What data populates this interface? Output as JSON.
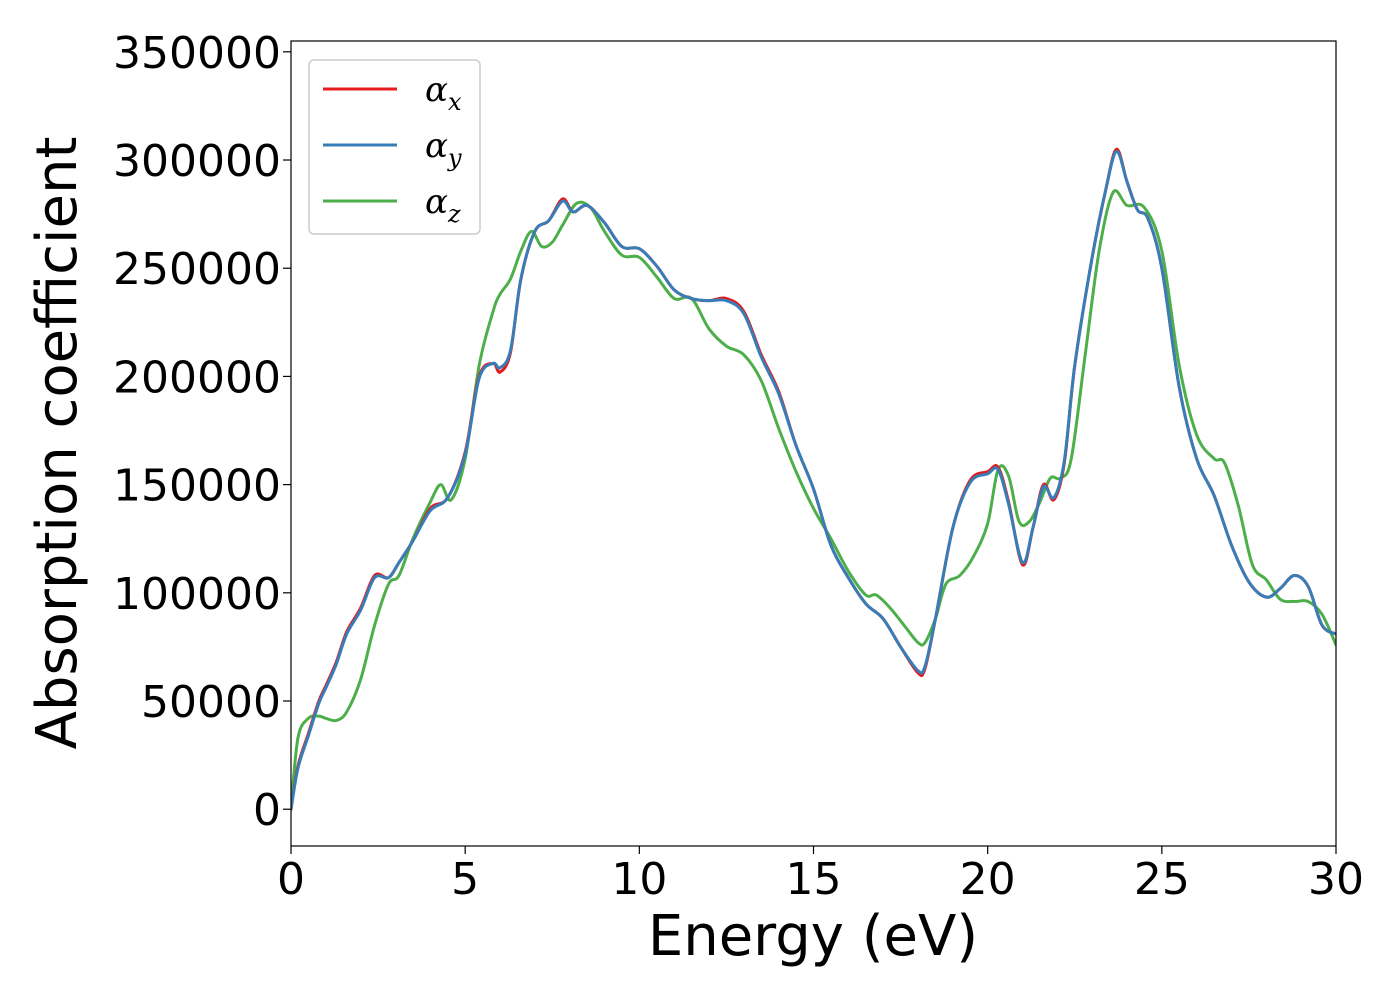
{
  "chart_data": {
    "type": "line",
    "xlabel": "Energy (eV)",
    "ylabel": "Absorption coefficient",
    "xlim": [
      0,
      30
    ],
    "ylim": [
      -17000,
      355000
    ],
    "xticks": [
      0,
      5,
      10,
      15,
      20,
      25,
      30
    ],
    "yticks": [
      0,
      50000,
      100000,
      150000,
      200000,
      250000,
      300000,
      350000
    ],
    "xtick_labels": [
      "0",
      "5",
      "10",
      "15",
      "20",
      "25",
      "30"
    ],
    "ytick_labels": [
      "0",
      "50000",
      "100000",
      "150000",
      "200000",
      "250000",
      "300000",
      "350000"
    ],
    "grid": false,
    "legend_position": "top-left",
    "series": [
      {
        "name": "α_x",
        "label_main": "α",
        "label_sub": "x",
        "color": "#e41a1c",
        "x": [
          0,
          0.2,
          0.5,
          0.8,
          1.0,
          1.3,
          1.6,
          2.0,
          2.4,
          2.8,
          3.1,
          3.5,
          4.0,
          4.5,
          5.0,
          5.4,
          5.8,
          6.0,
          6.3,
          6.6,
          7.0,
          7.4,
          7.8,
          8.1,
          8.5,
          9.0,
          9.5,
          10.0,
          10.5,
          11.0,
          11.5,
          12.0,
          12.5,
          13.0,
          13.5,
          14.0,
          14.5,
          15.0,
          15.5,
          16.0,
          16.5,
          17.0,
          17.5,
          18.0,
          18.2,
          18.5,
          19.0,
          19.5,
          20.0,
          20.3,
          20.6,
          21.0,
          21.3,
          21.6,
          21.9,
          22.2,
          22.5,
          23.0,
          23.4,
          23.7,
          24.0,
          24.3,
          24.6,
          25.0,
          25.5,
          26.0,
          26.5,
          27.0,
          27.5,
          28.0,
          28.4,
          28.8,
          29.2,
          29.6,
          30.0
        ],
        "y": [
          0,
          20000,
          35000,
          50000,
          57000,
          68000,
          82000,
          93000,
          108000,
          107000,
          114000,
          124000,
          139000,
          144000,
          165000,
          200000,
          206000,
          202000,
          211000,
          245000,
          267000,
          272000,
          282000,
          276000,
          279000,
          271000,
          260000,
          259000,
          251000,
          240000,
          236000,
          235000,
          236000,
          230000,
          210000,
          193000,
          168000,
          148000,
          122000,
          107000,
          95000,
          88000,
          75000,
          63000,
          65000,
          88000,
          130000,
          152000,
          156000,
          158000,
          142000,
          113000,
          130000,
          150000,
          143000,
          160000,
          205000,
          255000,
          287000,
          305000,
          290000,
          277000,
          273000,
          250000,
          195000,
          162000,
          145000,
          122000,
          105000,
          98000,
          102000,
          108000,
          103000,
          85000,
          81000
        ]
      },
      {
        "name": "α_y",
        "label_main": "α",
        "label_sub": "y",
        "color": "#377eb8",
        "x": [
          0,
          0.2,
          0.5,
          0.8,
          1.0,
          1.3,
          1.6,
          2.0,
          2.4,
          2.8,
          3.1,
          3.5,
          4.0,
          4.5,
          5.0,
          5.4,
          5.8,
          6.0,
          6.3,
          6.6,
          7.0,
          7.4,
          7.8,
          8.1,
          8.5,
          9.0,
          9.5,
          10.0,
          10.5,
          11.0,
          11.5,
          12.0,
          12.5,
          13.0,
          13.5,
          14.0,
          14.5,
          15.0,
          15.5,
          16.0,
          16.5,
          17.0,
          17.5,
          18.0,
          18.2,
          18.5,
          19.0,
          19.5,
          20.0,
          20.3,
          20.6,
          21.0,
          21.3,
          21.6,
          21.9,
          22.2,
          22.5,
          23.0,
          23.4,
          23.7,
          24.0,
          24.3,
          24.6,
          25.0,
          25.5,
          26.0,
          26.5,
          27.0,
          27.5,
          28.0,
          28.4,
          28.8,
          29.2,
          29.6,
          30.0
        ],
        "y": [
          0,
          19000,
          34000,
          49000,
          56000,
          67000,
          81000,
          92000,
          107000,
          107000,
          114000,
          124000,
          138000,
          144000,
          164000,
          199000,
          206000,
          204000,
          212000,
          245000,
          267000,
          272000,
          281000,
          276000,
          279000,
          271000,
          260000,
          259000,
          251000,
          240000,
          236000,
          235000,
          235000,
          229000,
          209000,
          192000,
          168000,
          148000,
          122000,
          107000,
          95000,
          88000,
          75000,
          64000,
          66000,
          88000,
          130000,
          151000,
          155000,
          157000,
          141000,
          114000,
          130000,
          149000,
          144000,
          161000,
          205000,
          255000,
          287000,
          304000,
          290000,
          277000,
          273000,
          250000,
          195000,
          162000,
          145000,
          122000,
          105000,
          98000,
          102000,
          108000,
          103000,
          85000,
          81000
        ]
      },
      {
        "name": "α_z",
        "label_main": "α",
        "label_sub": "z",
        "color": "#4daf4a",
        "x": [
          0,
          0.2,
          0.5,
          0.8,
          1.0,
          1.3,
          1.6,
          2.0,
          2.4,
          2.8,
          3.1,
          3.5,
          4.0,
          4.3,
          4.6,
          5.0,
          5.4,
          5.8,
          6.0,
          6.3,
          6.6,
          6.9,
          7.2,
          7.5,
          7.8,
          8.2,
          8.6,
          9.0,
          9.5,
          10.0,
          10.5,
          11.0,
          11.5,
          12.0,
          12.5,
          13.0,
          13.5,
          14.0,
          14.5,
          15.0,
          15.5,
          16.0,
          16.5,
          16.8,
          17.2,
          17.6,
          18.0,
          18.2,
          18.5,
          18.8,
          19.2,
          19.6,
          20.0,
          20.3,
          20.6,
          20.9,
          21.2,
          21.5,
          21.8,
          22.1,
          22.4,
          22.8,
          23.2,
          23.6,
          24.0,
          24.5,
          25.0,
          25.5,
          26.0,
          26.5,
          26.8,
          27.2,
          27.6,
          28.0,
          28.4,
          28.8,
          29.2,
          29.6,
          30.0
        ],
        "y": [
          0,
          33000,
          42000,
          43000,
          42000,
          41000,
          45000,
          60000,
          85000,
          104000,
          108000,
          125000,
          142000,
          150000,
          143000,
          162000,
          205000,
          230000,
          238000,
          245000,
          258000,
          267000,
          260000,
          262000,
          270000,
          280000,
          278000,
          267000,
          256000,
          255000,
          246000,
          236000,
          236000,
          222000,
          214000,
          210000,
          198000,
          176000,
          156000,
          139000,
          125000,
          110000,
          99000,
          99000,
          93000,
          85000,
          77000,
          77000,
          88000,
          104000,
          108000,
          117000,
          132000,
          157000,
          154000,
          133000,
          133000,
          142000,
          153000,
          153000,
          162000,
          210000,
          258000,
          285000,
          279000,
          278000,
          258000,
          205000,
          173000,
          162000,
          160000,
          140000,
          113000,
          106000,
          97000,
          96000,
          96000,
          90000,
          76000
        ]
      }
    ]
  }
}
